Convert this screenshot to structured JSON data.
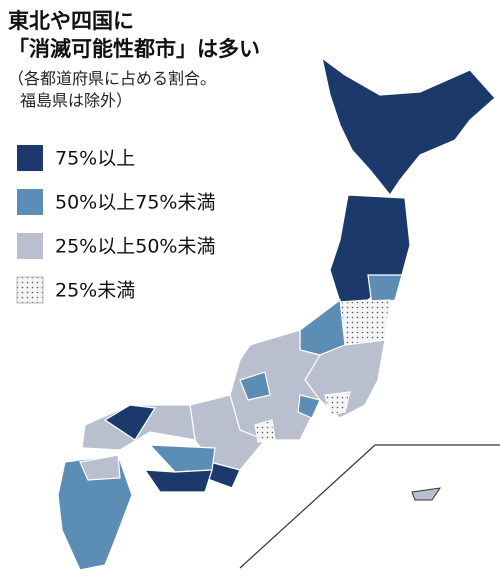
{
  "header": {
    "title_lines": [
      "東北や四国に",
      "「消滅可能性都市」は多い"
    ],
    "subtitle_lines": [
      "（各都道府県に占める割合。",
      "福島県は除外）"
    ]
  },
  "legend": [
    {
      "label": "75%以上",
      "color": "#1b3a6b"
    },
    {
      "label": "50%以上75%未満",
      "color": "#5b8db5"
    },
    {
      "label": "25%以上50%未満",
      "color": "#b9bfcf"
    },
    {
      "label": "25%未満",
      "color": "#f4f4f4"
    }
  ]
}
